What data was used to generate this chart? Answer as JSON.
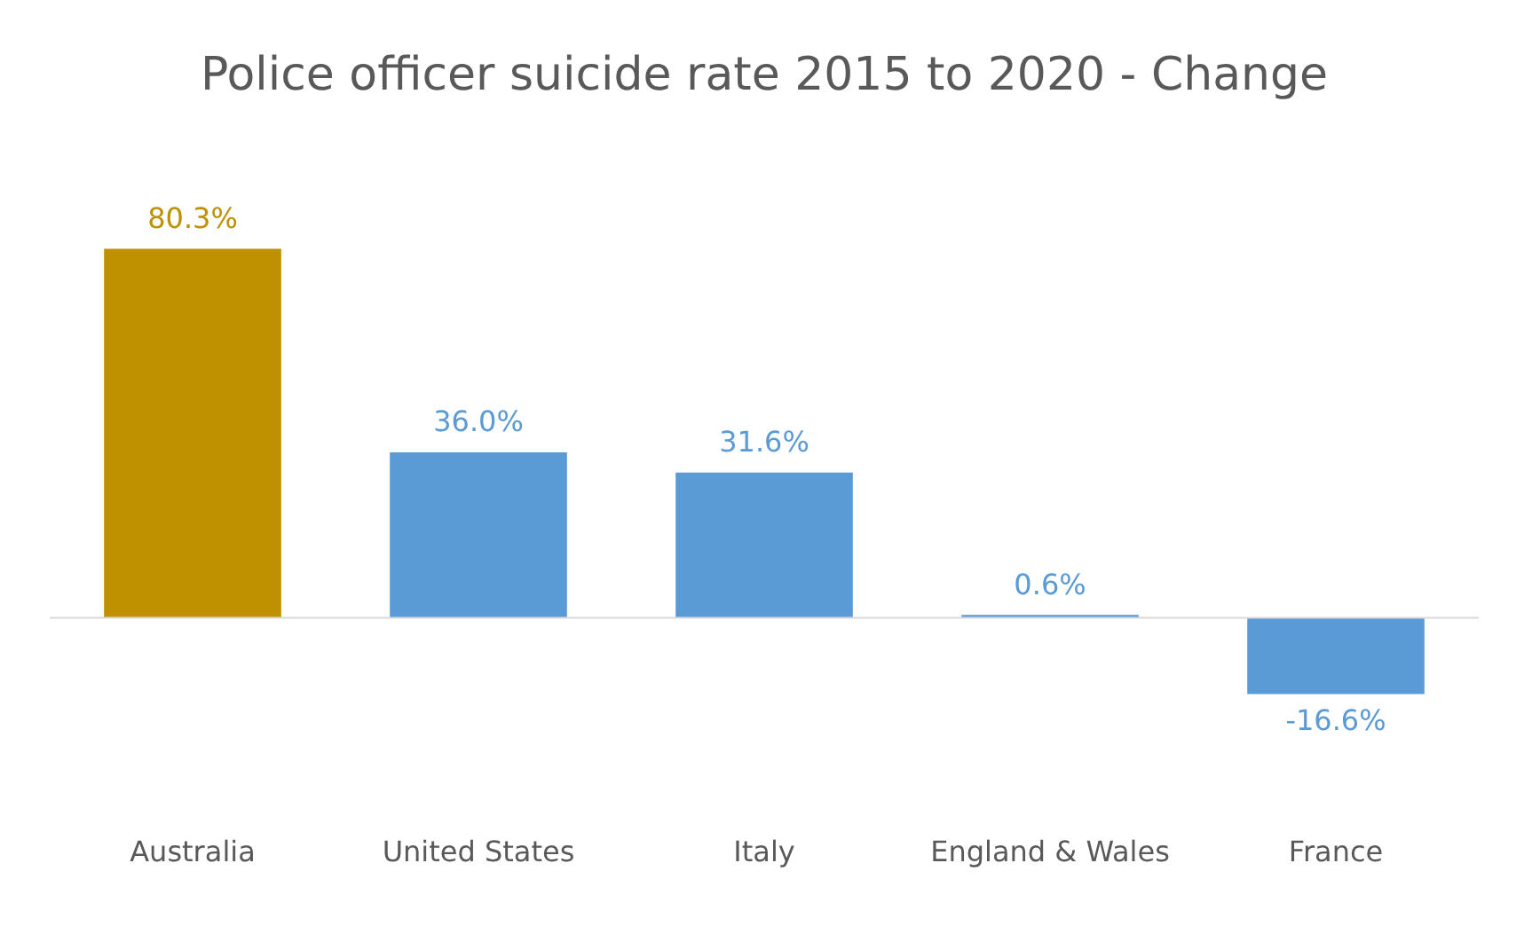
{
  "chart_data": {
    "type": "bar",
    "title": "Police officer suicide rate 2015 to 2020 - Change",
    "categories": [
      "Australia",
      "United States",
      "Italy",
      "England & Wales",
      "France"
    ],
    "values": [
      80.3,
      36.0,
      31.6,
      0.6,
      -16.6
    ],
    "colors": [
      "#bf9000",
      "#5b9bd5",
      "#5b9bd5",
      "#5b9bd5",
      "#5b9bd5"
    ],
    "value_labels": [
      "80.3%",
      "36.0%",
      "31.6%",
      "0.6%",
      "-16.6%"
    ],
    "tick_labels": "x",
    "grid": false,
    "legend": false
  }
}
